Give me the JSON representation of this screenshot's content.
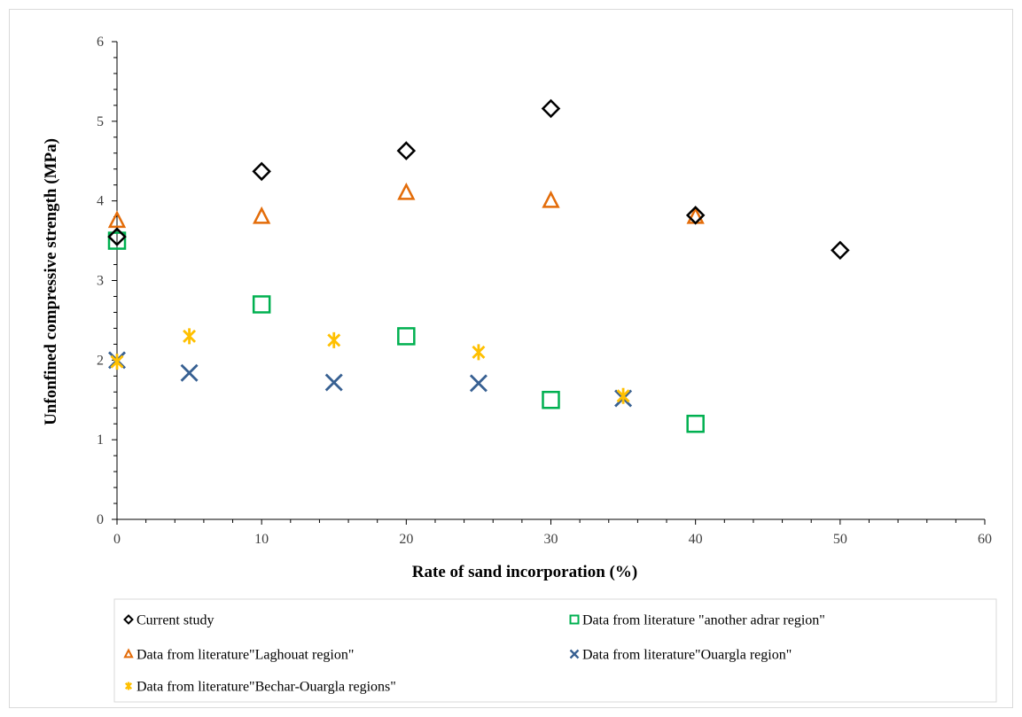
{
  "chart_data": {
    "type": "scatter",
    "title": "",
    "xlabel": "Rate of sand incorporation (%)",
    "ylabel": "Unfonfined compressive strength (MPa)",
    "xlim": [
      0,
      60
    ],
    "ylim": [
      0,
      6
    ],
    "x_ticks": [
      0,
      10,
      20,
      30,
      40,
      50,
      60
    ],
    "y_ticks": [
      0,
      1,
      2,
      3,
      4,
      5,
      6
    ],
    "grid": false,
    "legend_position": "bottom",
    "series": [
      {
        "name": "Current study",
        "marker": "diamond",
        "color": "#000000",
        "points": [
          [
            0,
            3.55
          ],
          [
            10,
            4.37
          ],
          [
            20,
            4.63
          ],
          [
            30,
            5.16
          ],
          [
            40,
            3.82
          ],
          [
            50,
            3.38
          ]
        ]
      },
      {
        "name": "Data from literature \"another adrar region\"",
        "marker": "square",
        "color": "#00b050",
        "points": [
          [
            0,
            3.5
          ],
          [
            10,
            2.7
          ],
          [
            20,
            2.3
          ],
          [
            30,
            1.5
          ],
          [
            40,
            1.2
          ]
        ]
      },
      {
        "name": "Data from literature\"Laghouat region\"",
        "marker": "triangle",
        "color": "#e36c09",
        "points": [
          [
            0,
            3.75
          ],
          [
            10,
            3.8
          ],
          [
            20,
            4.1
          ],
          [
            30,
            4.0
          ],
          [
            40,
            3.8
          ]
        ]
      },
      {
        "name": "Data from literature\"Ouargla region\"",
        "marker": "x",
        "color": "#376092",
        "points": [
          [
            0,
            2.0
          ],
          [
            5,
            1.84
          ],
          [
            15,
            1.72
          ],
          [
            25,
            1.71
          ],
          [
            35,
            1.52
          ]
        ]
      },
      {
        "name": "Data from literature\"Bechar-Ouargla regions\"",
        "marker": "star",
        "color": "#ffc000",
        "points": [
          [
            0,
            1.98
          ],
          [
            5,
            2.3
          ],
          [
            15,
            2.25
          ],
          [
            25,
            2.1
          ],
          [
            35,
            1.55
          ]
        ]
      }
    ]
  }
}
